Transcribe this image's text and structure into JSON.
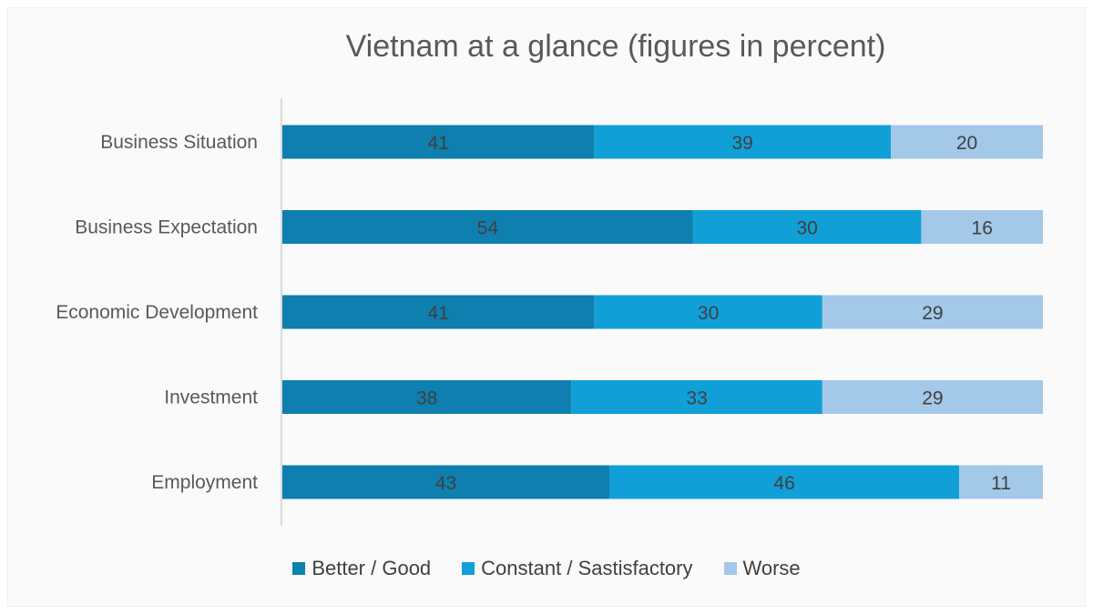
{
  "chart_data": {
    "type": "bar",
    "orientation": "horizontal",
    "stacked": true,
    "title": "Vietnam at a glance (figures in percent)",
    "xlabel": "",
    "ylabel": "",
    "xlim": [
      0,
      100
    ],
    "grid": false,
    "legend_position": "bottom",
    "categories": [
      "Business Situation",
      "Business Expectation",
      "Economic Development",
      "Investment",
      "Employment"
    ],
    "series": [
      {
        "name": "Better / Good",
        "color": "#0e7fae",
        "values": [
          41,
          54,
          41,
          38,
          43
        ]
      },
      {
        "name": "Constant / Sastisfactory",
        "color": "#119fd8",
        "values": [
          39,
          30,
          30,
          33,
          46
        ]
      },
      {
        "name": "Worse",
        "color": "#a3c8e8",
        "values": [
          20,
          16,
          29,
          29,
          11
        ]
      }
    ]
  }
}
